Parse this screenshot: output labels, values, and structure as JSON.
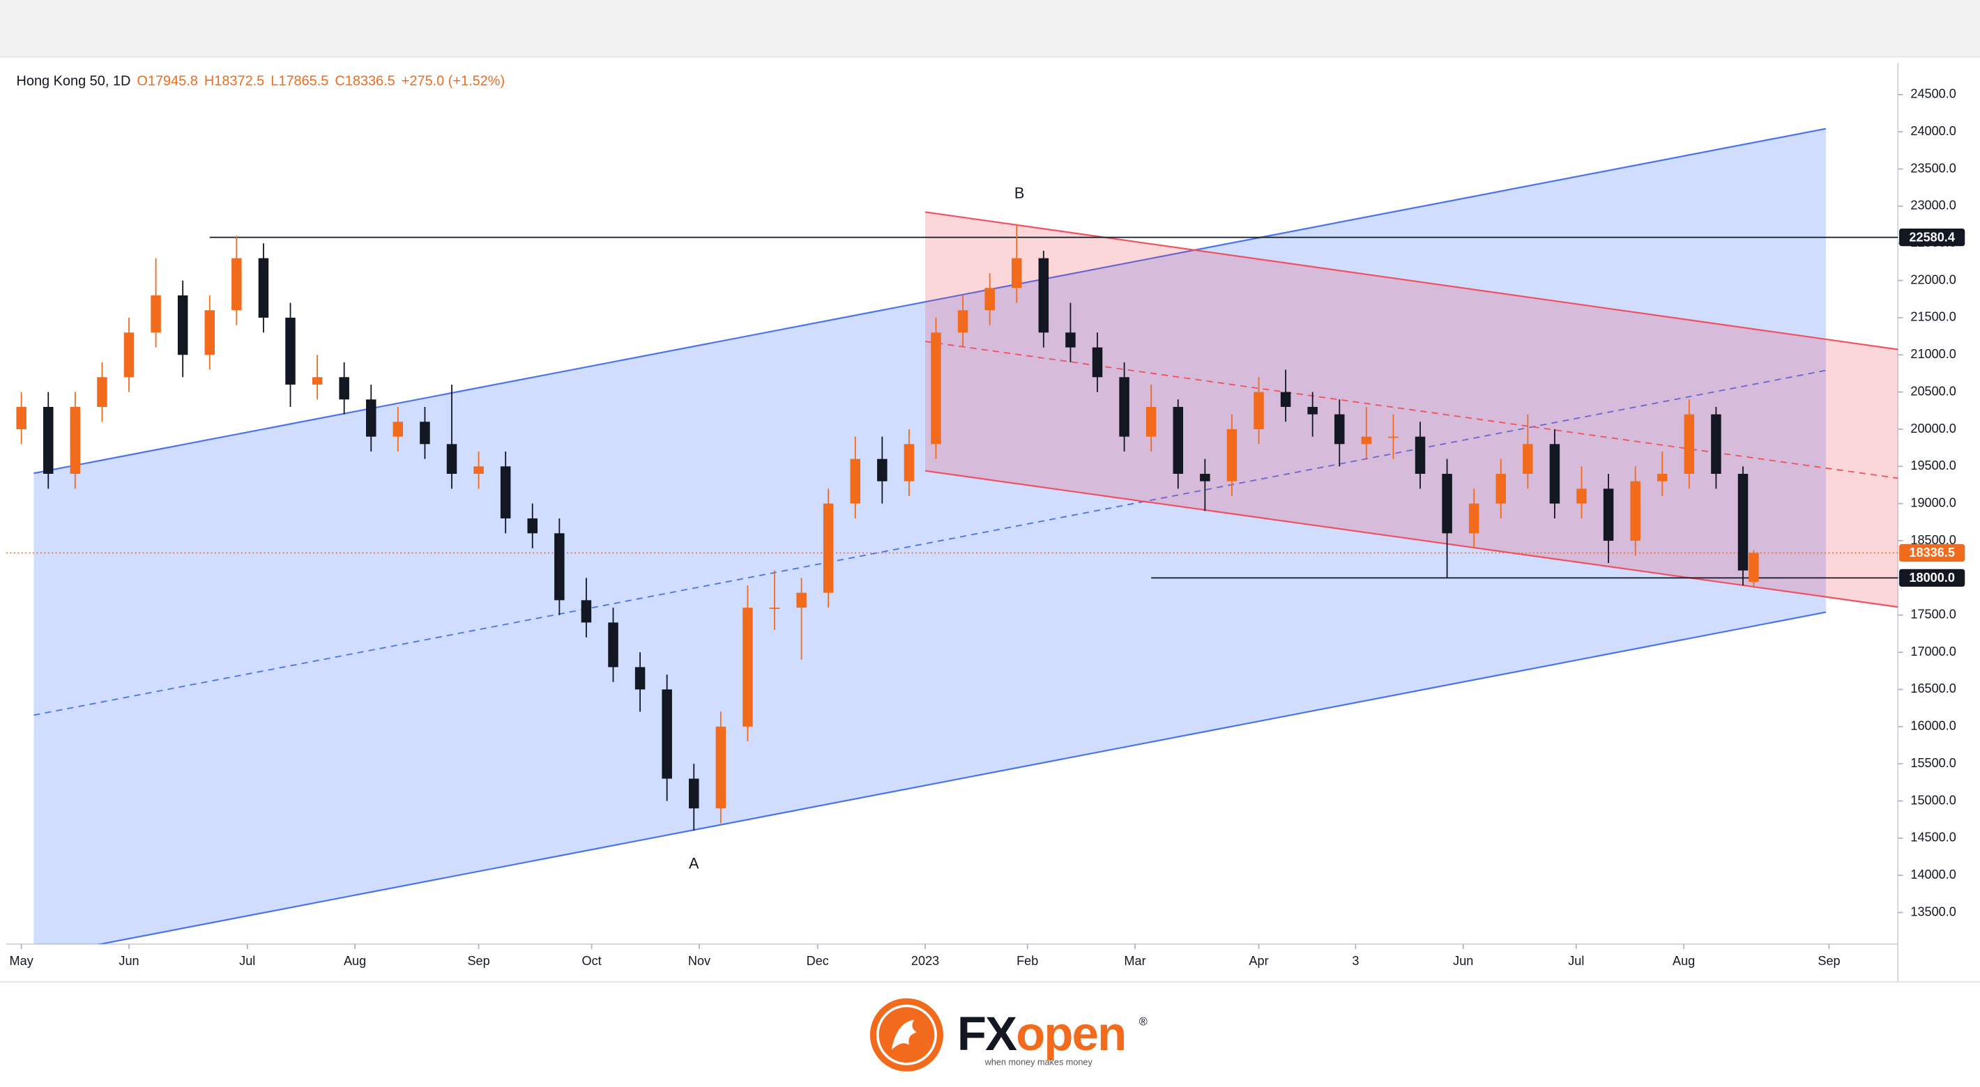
{
  "chart_data": {
    "type": "candlestick",
    "title": "Hong Kong 50, 1D",
    "ohlc_labels": [
      "O17945.8",
      "H18372.5",
      "L17865.5",
      "C18336.5"
    ],
    "change_label": "+275.0 (+1.52%)",
    "up_color": "#f26b1d",
    "down_color": "#131722",
    "x": [
      0,
      5,
      10,
      15,
      20,
      25,
      30,
      35,
      40,
      45,
      50,
      55,
      60,
      65,
      70,
      75,
      80,
      85,
      90,
      95,
      100,
      105,
      110,
      115,
      120,
      125,
      130,
      135,
      140,
      145,
      150,
      155,
      160,
      165,
      170,
      175,
      180,
      185,
      190,
      195,
      200,
      205,
      210,
      215,
      220,
      225,
      230,
      235,
      240,
      245,
      250,
      255,
      260,
      265,
      270,
      275,
      280,
      285,
      290,
      295,
      300,
      305,
      310,
      315,
      320,
      322
    ],
    "open": [
      20000,
      20300,
      19400,
      20300,
      20700,
      21300,
      21800,
      21000,
      21600,
      22300,
      21500,
      20600,
      20700,
      20400,
      19900,
      20100,
      19800,
      19400,
      19500,
      18800,
      18600,
      17700,
      17400,
      16800,
      16500,
      15300,
      14900,
      16000,
      17600,
      17600,
      17800,
      19000,
      19600,
      19300,
      19800,
      21300,
      21600,
      21900,
      22300,
      21300,
      21100,
      20700,
      19900,
      20300,
      19400,
      19300,
      20000,
      20500,
      20300,
      20200,
      19800,
      19900,
      19900,
      19400,
      18600,
      19000,
      19400,
      19800,
      19000,
      19200,
      18500,
      19300,
      19400,
      20200,
      19400,
      17945.8
    ],
    "high": [
      20500,
      20500,
      20500,
      20900,
      21500,
      22300,
      22000,
      21800,
      22600,
      22500,
      21700,
      21000,
      20900,
      20600,
      20300,
      20300,
      20600,
      19700,
      19700,
      19000,
      18800,
      18000,
      17600,
      17000,
      16700,
      15500,
      16200,
      17900,
      18100,
      18000,
      19200,
      19900,
      19900,
      20000,
      21500,
      21800,
      22100,
      22750,
      22400,
      21700,
      21300,
      20900,
      20600,
      20400,
      19600,
      20200,
      20700,
      20800,
      20500,
      20400,
      20300,
      20200,
      20100,
      19600,
      19200,
      19600,
      20200,
      20000,
      19500,
      19400,
      19500,
      19700,
      20400,
      20300,
      19500,
      18372.5
    ],
    "low": [
      19800,
      19200,
      19200,
      20100,
      20500,
      21100,
      20700,
      20800,
      21400,
      21300,
      20300,
      20400,
      20200,
      19700,
      19700,
      19600,
      19200,
      19200,
      18600,
      18400,
      17500,
      17200,
      16600,
      16200,
      15000,
      14600,
      14700,
      15800,
      17300,
      16900,
      17600,
      18800,
      19000,
      19100,
      19600,
      21100,
      21400,
      21700,
      21100,
      20900,
      20500,
      19700,
      19700,
      19200,
      18900,
      19100,
      19800,
      20100,
      19900,
      19500,
      19600,
      19600,
      19200,
      18000,
      18400,
      18800,
      19200,
      18800,
      18800,
      18200,
      18300,
      19100,
      19200,
      19200,
      17900,
      17865.5
    ],
    "close": [
      20300,
      19400,
      20300,
      20700,
      21300,
      21800,
      21000,
      21600,
      22300,
      21500,
      20600,
      20700,
      20400,
      19900,
      20100,
      19800,
      19400,
      19500,
      18800,
      18600,
      17700,
      17400,
      16800,
      16500,
      15300,
      14900,
      16000,
      17600,
      17600,
      17800,
      19000,
      19600,
      19300,
      19800,
      21300,
      21600,
      21900,
      22300,
      21300,
      21100,
      20700,
      19900,
      20300,
      19400,
      19300,
      20000,
      20500,
      20300,
      20200,
      19800,
      19900,
      19900,
      19400,
      18600,
      19000,
      19400,
      19800,
      19000,
      19200,
      18500,
      19300,
      19400,
      20200,
      19400,
      18100,
      18336.5
    ],
    "xlim": [
      -2.8,
      348.8
    ],
    "xticks": [
      {
        "value": 0,
        "label": "May"
      },
      {
        "value": 20,
        "label": "Jun"
      },
      {
        "value": 42,
        "label": "Jul"
      },
      {
        "value": 62,
        "label": "Aug"
      },
      {
        "value": 85,
        "label": "Sep"
      },
      {
        "value": 106,
        "label": "Oct"
      },
      {
        "value": 126,
        "label": "Nov"
      },
      {
        "value": 148,
        "label": "Dec"
      },
      {
        "value": 168,
        "label": "2023"
      },
      {
        "value": 187,
        "label": "Feb"
      },
      {
        "value": 207,
        "label": "Mar"
      },
      {
        "value": 230,
        "label": "Apr"
      },
      {
        "value": 248,
        "label": "3"
      },
      {
        "value": 268,
        "label": "Jun"
      },
      {
        "value": 289,
        "label": "Jul"
      },
      {
        "value": 309,
        "label": "Aug"
      },
      {
        "value": 336,
        "label": "Sep"
      }
    ],
    "ylim": [
      13076,
      24924
    ],
    "yticks": [
      {
        "value": 13500,
        "label": "13500.0"
      },
      {
        "value": 14000,
        "label": "14000.0"
      },
      {
        "value": 14500,
        "label": "14500.0"
      },
      {
        "value": 15000,
        "label": "15000.0"
      },
      {
        "value": 15500,
        "label": "15500.0"
      },
      {
        "value": 16000,
        "label": "16000.0"
      },
      {
        "value": 16500,
        "label": "16500.0"
      },
      {
        "value": 17000,
        "label": "17000.0"
      },
      {
        "value": 17500,
        "label": "17500.0"
      },
      {
        "value": 18000,
        "label": "18000.0"
      },
      {
        "value": 18500,
        "label": "18500.0"
      },
      {
        "value": 19000,
        "label": "19000.0"
      },
      {
        "value": 19500,
        "label": "19500.0"
      },
      {
        "value": 20000,
        "label": "20000.0"
      },
      {
        "value": 20500,
        "label": "20500.0"
      },
      {
        "value": 21000,
        "label": "21000.0"
      },
      {
        "value": 21500,
        "label": "21500.0"
      },
      {
        "value": 22000,
        "label": "22000.0"
      },
      {
        "value": 22500,
        "label": "22500.0"
      },
      {
        "value": 23000,
        "label": "23000.0"
      },
      {
        "value": 23500,
        "label": "23500.0"
      },
      {
        "value": 24000,
        "label": "24000.0"
      },
      {
        "value": 24500,
        "label": "24500.0"
      }
    ],
    "levels": [
      {
        "value": 22580.4,
        "label": "22580.4",
        "x_start": 35,
        "color": "#131722"
      },
      {
        "value": 18000,
        "label": "18000.0",
        "x_start": 210,
        "color": "#131722"
      }
    ],
    "last_price": {
      "value": 18336.5,
      "label": "18336.5",
      "color": "#f26b1d"
    },
    "channels": [
      {
        "color": "#4a72ee",
        "fill": "rgba(41,98,255,0.22)",
        "upper": {
          "x": [
            2.3,
            335.4
          ],
          "y": [
            19407,
            24042
          ]
        },
        "lower": {
          "x": [
            2.3,
            335.4
          ],
          "y": [
            12902,
            17539
          ]
        }
      },
      {
        "color": "#f0505f",
        "fill": "rgba(242,54,69,0.2)",
        "upper": {
          "x": [
            168,
            349
          ],
          "y": [
            22921,
            21071
          ]
        },
        "lower": {
          "x": [
            168,
            349
          ],
          "y": [
            19440,
            17607
          ]
        }
      }
    ],
    "annotations": [
      {
        "text": "A",
        "x": 125,
        "y": 14144
      },
      {
        "text": "B",
        "x": 185.5,
        "y": 23159
      }
    ]
  },
  "footer": {
    "brand_fx": "FX",
    "brand_open": "open",
    "registered": "®",
    "tagline": "when money makes money"
  }
}
